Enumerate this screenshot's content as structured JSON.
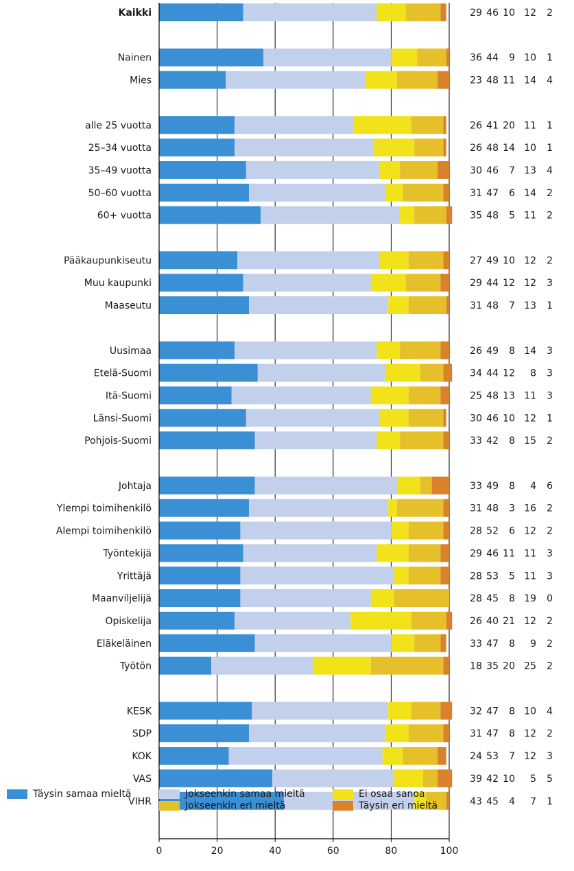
{
  "chart_data": {
    "type": "bar",
    "orientation": "horizontal",
    "stacked": true,
    "xlim": [
      0,
      100
    ],
    "xticks": [
      0,
      20,
      40,
      60,
      80,
      100
    ],
    "grid": true,
    "legend_position": "bottom",
    "series": [
      {
        "name": "Täysin samaa mieltä",
        "color": "#3b8fd4"
      },
      {
        "name": "Jokseenkin samaa mieltä",
        "color": "#c3d0eb"
      },
      {
        "name": "Ei osaa sanoa",
        "color": "#f1e21a"
      },
      {
        "name": "Jokseenkin eri mieltä",
        "color": "#e6c02a"
      },
      {
        "name": "Täysin eri mieltä",
        "color": "#d9822b"
      }
    ],
    "groups": [
      [
        {
          "label": "Kaikki",
          "bold": true,
          "values": [
            29,
            46,
            10,
            12,
            2
          ]
        }
      ],
      [
        {
          "label": "Nainen",
          "values": [
            36,
            44,
            9,
            10,
            1
          ]
        },
        {
          "label": "Mies",
          "values": [
            23,
            48,
            11,
            14,
            4
          ]
        }
      ],
      [
        {
          "label": "alle 25 vuotta",
          "values": [
            26,
            41,
            20,
            11,
            1
          ]
        },
        {
          "label": "25–34 vuotta",
          "values": [
            26,
            48,
            14,
            10,
            1
          ]
        },
        {
          "label": "35–49 vuotta",
          "values": [
            30,
            46,
            7,
            13,
            4
          ]
        },
        {
          "label": "50–60 vuotta",
          "values": [
            31,
            47,
            6,
            14,
            2
          ]
        },
        {
          "label": "60+ vuotta",
          "values": [
            35,
            48,
            5,
            11,
            2
          ]
        }
      ],
      [
        {
          "label": "Pääkaupunkiseutu",
          "values": [
            27,
            49,
            10,
            12,
            2
          ]
        },
        {
          "label": "Muu kaupunki",
          "values": [
            29,
            44,
            12,
            12,
            3
          ]
        },
        {
          "label": "Maaseutu",
          "values": [
            31,
            48,
            7,
            13,
            1
          ]
        }
      ],
      [
        {
          "label": "Uusimaa",
          "values": [
            26,
            49,
            8,
            14,
            3
          ]
        },
        {
          "label": "Etelä-Suomi",
          "values": [
            34,
            44,
            12,
            8,
            3
          ]
        },
        {
          "label": "Itä-Suomi",
          "values": [
            25,
            48,
            13,
            11,
            3
          ]
        },
        {
          "label": "Länsi-Suomi",
          "values": [
            30,
            46,
            10,
            12,
            1
          ]
        },
        {
          "label": "Pohjois-Suomi",
          "values": [
            33,
            42,
            8,
            15,
            2
          ]
        }
      ],
      [
        {
          "label": "Johtaja",
          "values": [
            33,
            49,
            8,
            4,
            6
          ]
        },
        {
          "label": "Ylempi toimihenkilö",
          "values": [
            31,
            48,
            3,
            16,
            2
          ]
        },
        {
          "label": "Alempi toimihenkilö",
          "values": [
            28,
            52,
            6,
            12,
            2
          ]
        },
        {
          "label": "Työntekijä",
          "values": [
            29,
            46,
            11,
            11,
            3
          ]
        },
        {
          "label": "Yrittäjä",
          "values": [
            28,
            53,
            5,
            11,
            3
          ]
        },
        {
          "label": "Maanviljelijä",
          "values": [
            28,
            45,
            8,
            19,
            0
          ]
        },
        {
          "label": "Opiskelija",
          "values": [
            26,
            40,
            21,
            12,
            2
          ]
        },
        {
          "label": "Eläkeläinen",
          "values": [
            33,
            47,
            8,
            9,
            2
          ]
        },
        {
          "label": "Työtön",
          "values": [
            18,
            35,
            20,
            25,
            2
          ]
        }
      ],
      [
        {
          "label": "KESK",
          "values": [
            32,
            47,
            8,
            10,
            4
          ]
        },
        {
          "label": "SDP",
          "values": [
            31,
            47,
            8,
            12,
            2
          ]
        },
        {
          "label": "KOK",
          "values": [
            24,
            53,
            7,
            12,
            3
          ]
        },
        {
          "label": "VAS",
          "values": [
            39,
            42,
            10,
            5,
            5
          ]
        },
        {
          "label": "VIHR",
          "values": [
            43,
            45,
            4,
            7,
            1
          ]
        }
      ]
    ]
  }
}
